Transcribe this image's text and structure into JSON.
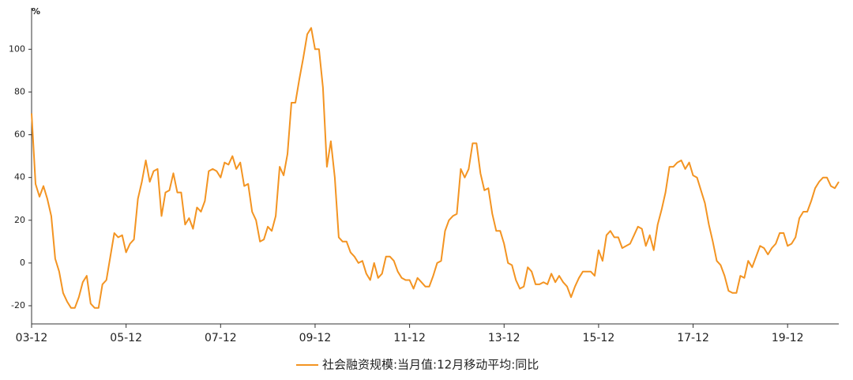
{
  "chart_data": {
    "type": "line",
    "y_label": "%",
    "categories": [
      "03-12",
      null,
      null,
      null,
      null,
      null,
      null,
      null,
      null,
      null,
      null,
      null,
      null,
      null,
      null,
      null,
      null,
      null,
      null,
      null,
      null,
      null,
      null,
      null,
      "05-12",
      null,
      null,
      null,
      null,
      null,
      null,
      null,
      null,
      null,
      null,
      null,
      null,
      null,
      null,
      null,
      null,
      null,
      null,
      null,
      null,
      null,
      null,
      null,
      "07-12",
      null,
      null,
      null,
      null,
      null,
      null,
      null,
      null,
      null,
      null,
      null,
      null,
      null,
      null,
      null,
      null,
      null,
      null,
      null,
      null,
      null,
      null,
      null,
      "09-12",
      null,
      null,
      null,
      null,
      null,
      null,
      null,
      null,
      null,
      null,
      null,
      null,
      null,
      null,
      null,
      null,
      null,
      null,
      null,
      null,
      null,
      null,
      null,
      "11-12",
      null,
      null,
      null,
      null,
      null,
      null,
      null,
      null,
      null,
      null,
      null,
      null,
      null,
      null,
      null,
      null,
      null,
      null,
      null,
      null,
      null,
      null,
      null,
      "13-12",
      null,
      null,
      null,
      null,
      null,
      null,
      null,
      null,
      null,
      null,
      null,
      null,
      null,
      null,
      null,
      null,
      null,
      null,
      null,
      null,
      null,
      null,
      null,
      "15-12",
      null,
      null,
      null,
      null,
      null,
      null,
      null,
      null,
      null,
      null,
      null,
      null,
      null,
      null,
      null,
      null,
      null,
      null,
      null,
      null,
      null,
      null,
      null,
      "17-12",
      null,
      null,
      null,
      null,
      null,
      null,
      null,
      null,
      null,
      null,
      null,
      null,
      null,
      null,
      null,
      null,
      null,
      null,
      null,
      null,
      null,
      null,
      null,
      "19-12",
      null,
      null,
      null,
      null,
      null,
      null,
      null,
      null,
      null,
      null,
      null,
      null,
      null
    ],
    "series": [
      {
        "name": "社会融资规模:当月值:12月移动平均:同比",
        "color": "#f39422",
        "values": [
          70,
          37,
          31,
          36,
          30,
          22,
          2,
          -4,
          -14,
          -18,
          -21,
          -21,
          -16,
          -9,
          -6,
          -19,
          -21,
          -21,
          -10,
          -8,
          3,
          14,
          12,
          13,
          5,
          9,
          11,
          30,
          38,
          48,
          38,
          43,
          44,
          22,
          33,
          34,
          42,
          33,
          33,
          18,
          21,
          16,
          26,
          24,
          29,
          43,
          44,
          43,
          40,
          47,
          46,
          50,
          44,
          47,
          36,
          37,
          24,
          20,
          10,
          11,
          17,
          15,
          22,
          45,
          41,
          51,
          75,
          75,
          86,
          96,
          107,
          110,
          100,
          100,
          82,
          45,
          57,
          40,
          12,
          10,
          10,
          5,
          3,
          0,
          1,
          -5,
          -8,
          0,
          -7,
          -5,
          3,
          3,
          1,
          -4,
          -7,
          -8,
          -8,
          -12,
          -7,
          -9,
          -11,
          -11,
          -6,
          0,
          1,
          15,
          20,
          22,
          23,
          44,
          40,
          44,
          56,
          56,
          42,
          34,
          35,
          23,
          15,
          15,
          9,
          0,
          -1,
          -8,
          -12,
          -11,
          -2,
          -4,
          -10,
          -10,
          -9,
          -10,
          -5,
          -9,
          -6,
          -9,
          -11,
          -16,
          -11,
          -7,
          -4,
          -4,
          -4,
          -6,
          6,
          1,
          13,
          15,
          12,
          12,
          7,
          8,
          9,
          13,
          17,
          16,
          8,
          13,
          6,
          18,
          25,
          33,
          45,
          45,
          47,
          48,
          44,
          47,
          41,
          40,
          34,
          28,
          18,
          10,
          1,
          -1,
          -6,
          -13,
          -14,
          -14,
          -6,
          -7,
          1,
          -2,
          3,
          8,
          7,
          4,
          7,
          9,
          14,
          14,
          8,
          9,
          12,
          21,
          24,
          24,
          29,
          35,
          38,
          40,
          40,
          36,
          35,
          38
        ]
      }
    ],
    "ylim": [
      -28.5,
      117.5
    ],
    "yticks": [
      -20,
      0,
      20,
      40,
      60,
      80,
      100
    ],
    "grid": false,
    "legend": "bottom"
  }
}
